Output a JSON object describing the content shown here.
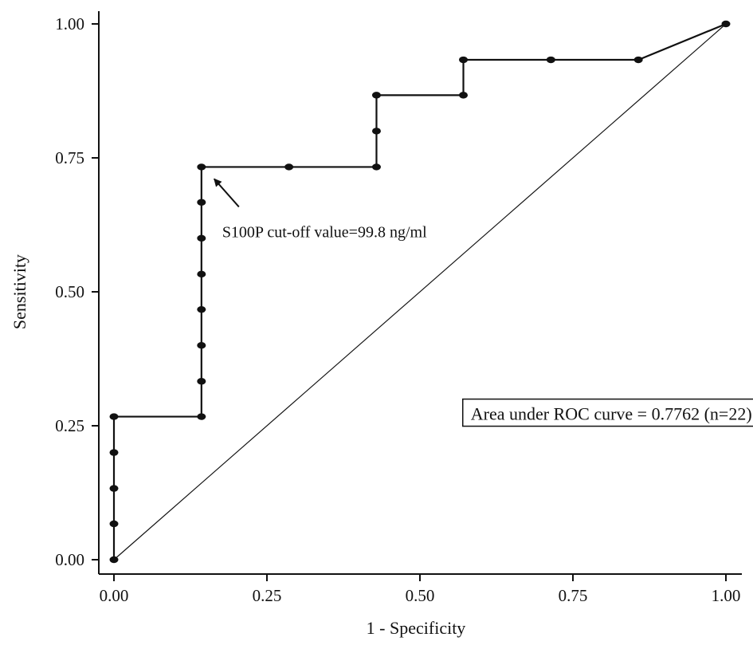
{
  "chart_data": {
    "type": "line",
    "xlabel": "1 - Specificity",
    "ylabel": "Sensitivity",
    "xlim": [
      0,
      1
    ],
    "ylim": [
      0,
      1
    ],
    "xticks": [
      "0.00",
      "0.25",
      "0.50",
      "0.75",
      "1.00"
    ],
    "yticks": [
      "0.00",
      "0.25",
      "0.50",
      "0.75",
      "1.00"
    ],
    "grid": false,
    "series": [
      {
        "x": [
          0,
          0,
          0,
          0,
          0,
          0.143,
          0.143,
          0.143,
          0.143,
          0.143,
          0.143,
          0.143,
          0.143,
          0.286,
          0.429,
          0.429,
          0.429,
          0.571,
          0.571,
          0.714,
          0.857,
          1.0
        ],
        "y": [
          0,
          0.067,
          0.133,
          0.2,
          0.267,
          0.267,
          0.333,
          0.4,
          0.467,
          0.533,
          0.6,
          0.667,
          0.733,
          0.733,
          0.733,
          0.8,
          0.867,
          0.867,
          0.933,
          0.933,
          0.933,
          1.0
        ]
      }
    ],
    "reference_line": {
      "x": [
        0,
        1
      ],
      "y": [
        0,
        1
      ]
    },
    "annotations": {
      "cutoff": {
        "text": "S100P cut-off value=99.8 ng/ml",
        "x": 0.143,
        "y": 0.733
      },
      "auc": {
        "text": "Area under ROC curve = 0.7762  (n=22)",
        "x": 0.57,
        "y": 0.27
      }
    }
  }
}
